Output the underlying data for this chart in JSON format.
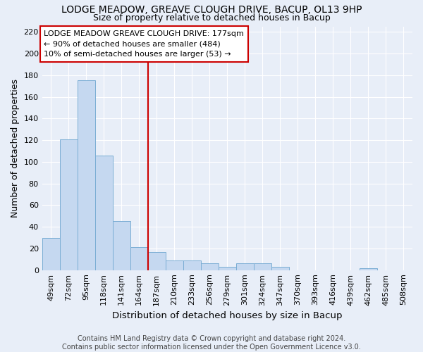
{
  "title": "LODGE MEADOW, GREAVE CLOUGH DRIVE, BACUP, OL13 9HP",
  "subtitle": "Size of property relative to detached houses in Bacup",
  "xlabel": "Distribution of detached houses by size in Bacup",
  "ylabel": "Number of detached properties",
  "footer_line1": "Contains HM Land Registry data © Crown copyright and database right 2024.",
  "footer_line2": "Contains public sector information licensed under the Open Government Licence v3.0.",
  "bar_labels": [
    "49sqm",
    "72sqm",
    "95sqm",
    "118sqm",
    "141sqm",
    "164sqm",
    "187sqm",
    "210sqm",
    "233sqm",
    "256sqm",
    "279sqm",
    "301sqm",
    "324sqm",
    "347sqm",
    "370sqm",
    "393sqm",
    "416sqm",
    "439sqm",
    "462sqm",
    "485sqm",
    "508sqm"
  ],
  "bar_values": [
    30,
    121,
    175,
    106,
    45,
    21,
    17,
    9,
    9,
    6,
    3,
    6,
    6,
    3,
    0,
    0,
    0,
    0,
    2,
    0,
    0
  ],
  "bar_color": "#c5d8f0",
  "bar_edge_color": "#7aadd4",
  "background_color": "#e8eef8",
  "grid_color": "#ffffff",
  "annotation_box_text": "LODGE MEADOW GREAVE CLOUGH DRIVE: 177sqm\n← 90% of detached houses are smaller (484)\n10% of semi-detached houses are larger (53) →",
  "annotation_box_color": "#ffffff",
  "annotation_box_edge": "#cc0000",
  "vline_x": 6.0,
  "vline_color": "#cc0000",
  "ylim": [
    0,
    225
  ],
  "yticks": [
    0,
    20,
    40,
    60,
    80,
    100,
    120,
    140,
    160,
    180,
    200,
    220
  ],
  "title_fontsize": 10,
  "subtitle_fontsize": 9,
  "ylabel_fontsize": 9,
  "xlabel_fontsize": 9.5,
  "tick_fontsize": 8,
  "footer_fontsize": 7
}
